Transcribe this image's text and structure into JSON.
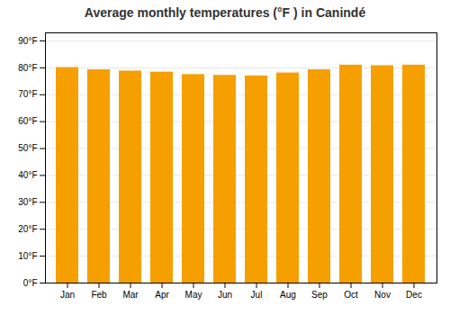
{
  "chart_data": {
    "type": "bar",
    "title": "Average monthly temperatures (°F ) in Canindé",
    "categories": [
      "Jan",
      "Feb",
      "Mar",
      "Apr",
      "May",
      "Jun",
      "Jul",
      "Aug",
      "Sep",
      "Oct",
      "Nov",
      "Dec"
    ],
    "values": [
      80.1,
      79.3,
      78.8,
      78.4,
      77.5,
      77.2,
      77.0,
      78.1,
      79.3,
      81.0,
      80.8,
      81.0
    ],
    "color": "#F5A000",
    "ylim": [
      0,
      93
    ],
    "yticks": [
      {
        "value": 0,
        "label": "0°F"
      },
      {
        "value": 10,
        "label": "10°F"
      },
      {
        "value": 20,
        "label": "20°F"
      },
      {
        "value": 30,
        "label": "30°F"
      },
      {
        "value": 40,
        "label": "40°F"
      },
      {
        "value": 50,
        "label": "50°F"
      },
      {
        "value": 60,
        "label": "60°F"
      },
      {
        "value": 70,
        "label": "70°F"
      },
      {
        "value": 80,
        "label": "80°F"
      },
      {
        "value": 90,
        "label": "90°F"
      }
    ],
    "grid": true
  }
}
